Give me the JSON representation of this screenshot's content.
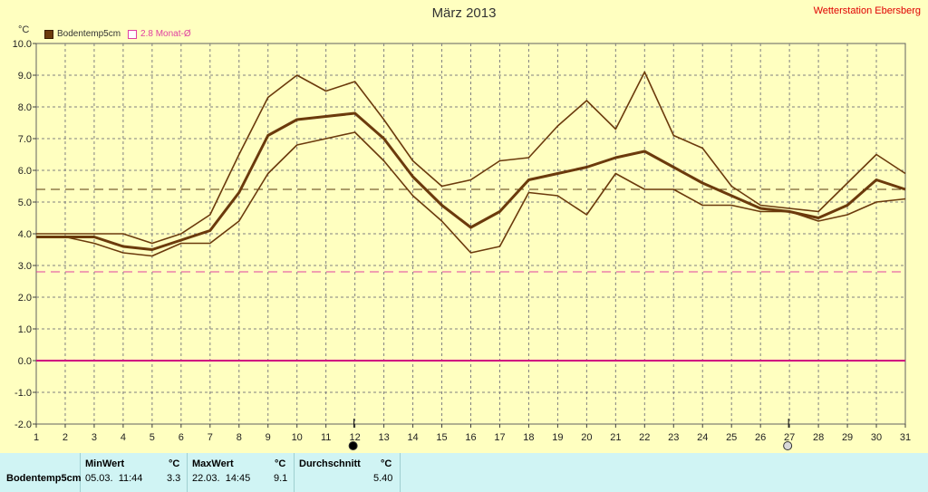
{
  "header": {
    "title": "März 2013",
    "station": "Wetterstation Ebersberg",
    "unit": "°C"
  },
  "legend": {
    "series_label": "Bodentemp5cm",
    "avg_label": "2.8 Monat-Ø"
  },
  "chart_data": {
    "type": "line",
    "x": [
      1,
      2,
      3,
      4,
      5,
      6,
      7,
      8,
      9,
      10,
      11,
      12,
      13,
      14,
      15,
      16,
      17,
      18,
      19,
      20,
      21,
      22,
      23,
      24,
      25,
      26,
      27,
      28,
      29,
      30,
      31
    ],
    "xlim": [
      1,
      31
    ],
    "ylim": [
      -2,
      10
    ],
    "yticks": [
      "10.0",
      "9.0",
      "8.0",
      "7.0",
      "6.0",
      "5.0",
      "4.0",
      "3.0",
      "2.0",
      "1.0",
      "0.0",
      "-1.0",
      "-2.0"
    ],
    "grid": true,
    "legend_position": "top-left",
    "series": [
      {
        "name": "Bodentemp5cm",
        "color": "#6b3a0c",
        "values": [
          3.9,
          3.9,
          3.9,
          3.6,
          3.5,
          3.8,
          4.1,
          5.3,
          7.1,
          7.6,
          7.7,
          7.8,
          7.0,
          5.8,
          4.9,
          4.2,
          4.7,
          5.7,
          5.9,
          6.1,
          6.4,
          6.6,
          6.1,
          5.6,
          5.2,
          4.8,
          4.7,
          4.5,
          4.9,
          5.7,
          5.4
        ]
      },
      {
        "values": [
          4.0,
          4.0,
          4.0,
          4.0,
          3.7,
          4.0,
          4.6,
          6.5,
          8.3,
          9.0,
          8.5,
          8.8,
          7.6,
          6.3,
          5.5,
          5.7,
          6.3,
          6.4,
          7.4,
          8.2,
          7.3,
          9.1,
          7.1,
          6.7,
          5.5,
          4.9,
          4.8,
          4.7,
          5.6,
          6.5,
          5.9
        ]
      },
      {
        "values": [
          3.9,
          3.9,
          3.7,
          3.4,
          3.3,
          3.7,
          3.7,
          4.4,
          5.9,
          6.8,
          7.0,
          7.2,
          6.3,
          5.2,
          4.4,
          3.4,
          3.6,
          5.3,
          5.2,
          4.6,
          5.9,
          5.4,
          5.4,
          4.9,
          4.9,
          4.7,
          4.7,
          4.4,
          4.6,
          5.0,
          5.1
        ]
      }
    ],
    "reference_lines": [
      {
        "value": 5.4,
        "color": "#5a3a10"
      },
      {
        "value": 2.8,
        "color": "#e040a0"
      },
      {
        "value": 0.0,
        "color": "#d00080"
      }
    ],
    "markers": [
      {
        "day": 12,
        "type": "full-moon"
      },
      {
        "day": 27,
        "type": "new-moon"
      }
    ],
    "colors": {
      "grid": "#808080",
      "background": "#ffffc0"
    }
  },
  "stats_table": {
    "headers": {
      "min": "MinWert",
      "min_unit": "°C",
      "max": "MaxWert",
      "max_unit": "°C",
      "avg": "Durchschnitt",
      "avg_unit": "°C"
    },
    "rows": [
      {
        "label": "Bodentemp5cm",
        "min_time": "05.03.  11:44",
        "min_val": "3.3",
        "max_time": "22.03.  14:45",
        "max_val": "9.1",
        "avg_val": "5.40"
      }
    ]
  }
}
